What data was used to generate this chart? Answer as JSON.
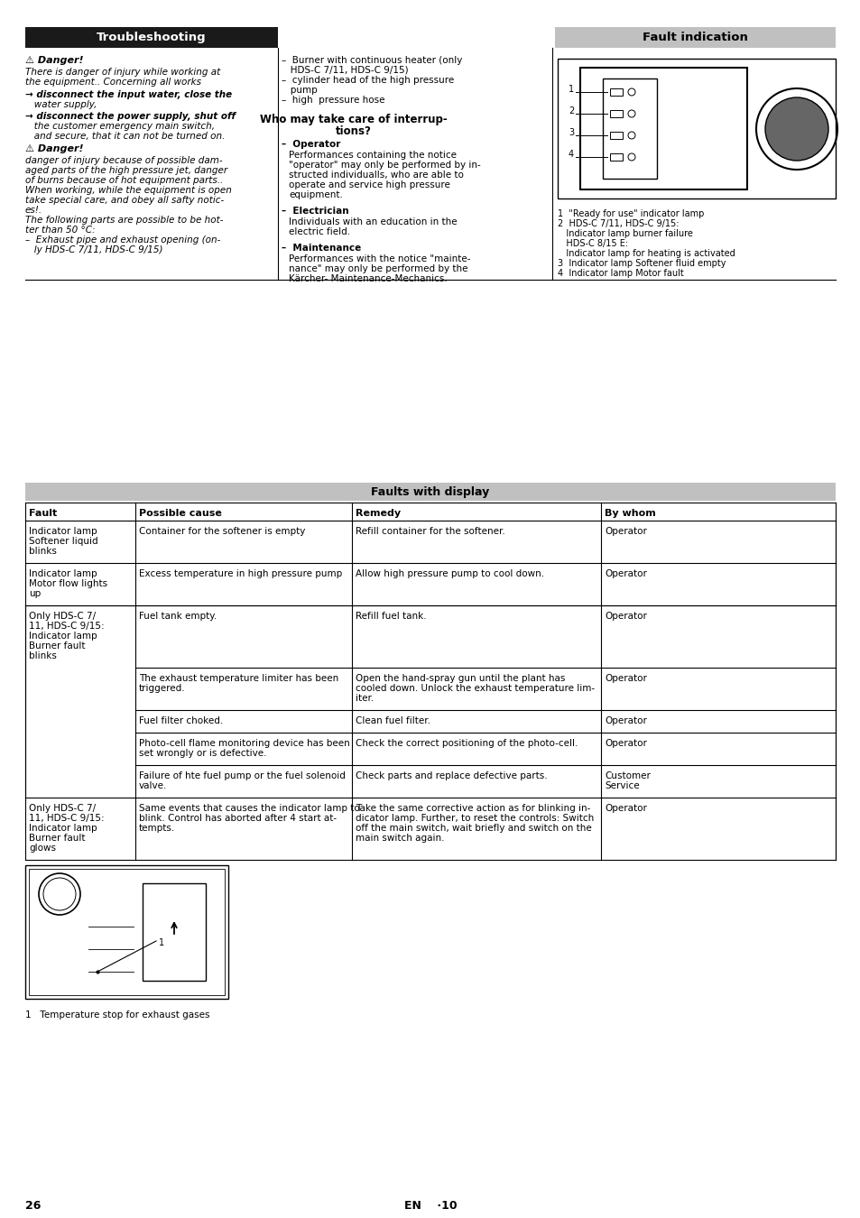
{
  "page_bg": "#ffffff",
  "title_troubleshooting": "Troubleshooting",
  "title_fault_indication": "Fault indication",
  "title_faults_display": "Faults with display",
  "table_header_texts": [
    "Fault",
    "Possible cause",
    "Remedy",
    "By whom"
  ],
  "table_rows": [
    {
      "fault": "Indicator lamp\nSoftener liquid\nblinks",
      "cause": "Container for the softener is empty",
      "remedy": "Refill container for the softener.",
      "bywhom": "Operator"
    },
    {
      "fault": "Indicator lamp\nMotor flow lights\nup",
      "cause": "Excess temperature in high pressure pump",
      "remedy": "Allow high pressure pump to cool down.",
      "bywhom": "Operator"
    },
    {
      "fault": "Only HDS-C 7/\n11, HDS-C 9/15:\nIndicator lamp\nBurner fault\nblinks",
      "cause": "Fuel tank empty.",
      "remedy": "Refill fuel tank.",
      "bywhom": "Operator"
    },
    {
      "fault": "",
      "cause": "The exhaust temperature limiter has been\ntriggered.",
      "remedy": "Open the hand-spray gun until the plant has\ncooled down. Unlock the exhaust temperature lim-\niter.",
      "bywhom": "Operator"
    },
    {
      "fault": "",
      "cause": "Fuel filter choked.",
      "remedy": "Clean fuel filter.",
      "bywhom": "Operator"
    },
    {
      "fault": "",
      "cause": "Photo-cell flame monitoring device has been\nset wrongly or is defective.",
      "remedy": "Check the correct positioning of the photo-cell.",
      "bywhom": "Operator"
    },
    {
      "fault": "",
      "cause": "Failure of hte fuel pump or the fuel solenoid\nvalve.",
      "remedy": "Check parts and replace defective parts.",
      "bywhom": "Customer\nService"
    },
    {
      "fault": "Only HDS-C 7/\n11, HDS-C 9/15:\nIndicator lamp\nBurner fault\nglows",
      "cause": "Same events that causes the indicator lamp to\nblink. Control has aborted after 4 start at-\ntempts.",
      "remedy": "Take the same corrective action as for blinking in-\ndicator lamp. Further, to reset the controls: Switch\noff the main switch, wait briefly and switch on the\nmain switch again.",
      "bywhom": "Operator"
    }
  ],
  "footer_page": "26",
  "footer_center": "EN    ·10",
  "left_col_danger1": "⚠ Danger!",
  "left_col_body1": "There is danger of injury while working at\nthe equipment.. Concerning all works",
  "left_col_arrow1_line1": "→ disconnect the input water, close the",
  "left_col_arrow1_line2": "   water supply,",
  "left_col_arrow2_line1": "→ disconnect the power supply, shut off",
  "left_col_arrow2_line2": "   the customer emergency main switch,",
  "left_col_arrow2_line3": "   and secure, that it can not be turned on.",
  "left_col_danger2": "⚠ Danger!",
  "left_col_body2_lines": [
    "danger of injury because of possible dam-",
    "aged parts of the high pressure jet, danger",
    "of burns because of hot equipment parts..",
    "When working, while the equipment is open",
    "take special care, and obey all safty notic-",
    "es!.",
    "The following parts are possible to be hot-",
    "ter than 50 °C:",
    "–  Exhaust pipe and exhaust opening (on-",
    "   ly HDS-C 7/11, HDS-C 9/15)"
  ],
  "mid_col_lines": [
    "–  Burner with continuous heater (only",
    "   HDS-C 7/11, HDS-C 9/15)",
    "–  cylinder head of the high pressure",
    "   pump",
    "–  high  pressure hose"
  ],
  "mid_who_line1": "Who may take care of interrup-",
  "mid_who_line2": "tions?",
  "mid_operator_header": "–  Operator",
  "mid_operator_lines": [
    "Performances containing the notice",
    "\"operator\" may only be performed by in-",
    "structed individualls, who are able to",
    "operate and service high pressure",
    "equipment."
  ],
  "mid_elec_header": "–  Electrician",
  "mid_elec_lines": [
    "Individuals with an education in the",
    "electric field."
  ],
  "mid_maint_header": "–  Maintenance",
  "mid_maint_lines": [
    "Performances with the notice \"mainte-",
    "nance\" may only be performed by the",
    "Kärcher- Maintenance-Mechanics."
  ],
  "right_label1": "1  \"Ready for use\" indicator lamp",
  "right_label2a": "2  HDS-C 7/11, HDS-C 9/15:",
  "right_label2b": "   Indicator lamp burner failure",
  "right_label2c": "   HDS-C 8/15 E:",
  "right_label2d": "   Indicator lamp for heating is activated",
  "right_label3": "3  Indicator lamp Softener fluid empty",
  "right_label4": "4  Indicator lamp Motor fault",
  "image_caption": "1   Temperature stop for exhaust gases"
}
